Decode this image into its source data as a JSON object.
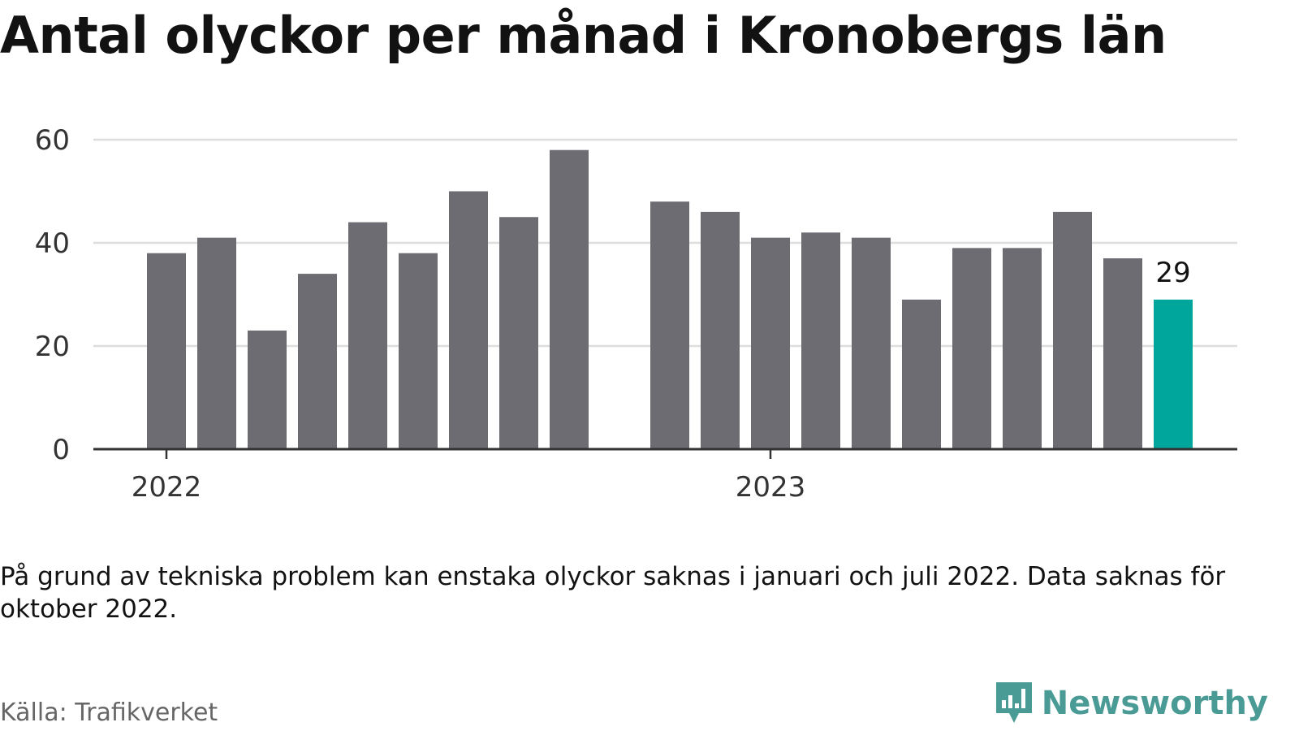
{
  "title": "Antal olyckor per månad i Kronobergs län",
  "note": "På grund av tekniska problem kan enstaka olyckor saknas i januari och juli 2022. Data saknas för oktober 2022.",
  "source": "Källa: Trafikverket",
  "brand": "Newsworthy",
  "colors": {
    "bar": "#6d6c72",
    "highlight": "#00a69c",
    "grid": "#dddddd",
    "axis": "#333333",
    "brand": "#4a9b96"
  },
  "chart_data": {
    "type": "bar",
    "x": [
      "2022-01",
      "2022-02",
      "2022-03",
      "2022-04",
      "2022-05",
      "2022-06",
      "2022-07",
      "2022-08",
      "2022-09",
      "2022-10",
      "2022-11",
      "2022-12",
      "2023-01",
      "2023-02",
      "2023-03",
      "2023-04",
      "2023-05",
      "2023-06",
      "2023-07",
      "2023-08",
      "2023-09",
      "2023-10",
      "2023-11"
    ],
    "values": [
      38,
      41,
      23,
      34,
      44,
      38,
      50,
      45,
      58,
      null,
      48,
      46,
      41,
      42,
      41,
      29,
      39,
      39,
      46,
      37,
      29,
      null,
      null
    ],
    "highlight_index": 20,
    "highlight_label": "29",
    "xticks": [
      {
        "x": "2022-01",
        "label": "2022"
      },
      {
        "x": "2023-01",
        "label": "2023"
      }
    ],
    "yticks": [
      0,
      20,
      40,
      60
    ],
    "ylim": [
      0,
      62
    ],
    "grid": true,
    "xlabel": "",
    "ylabel": ""
  }
}
